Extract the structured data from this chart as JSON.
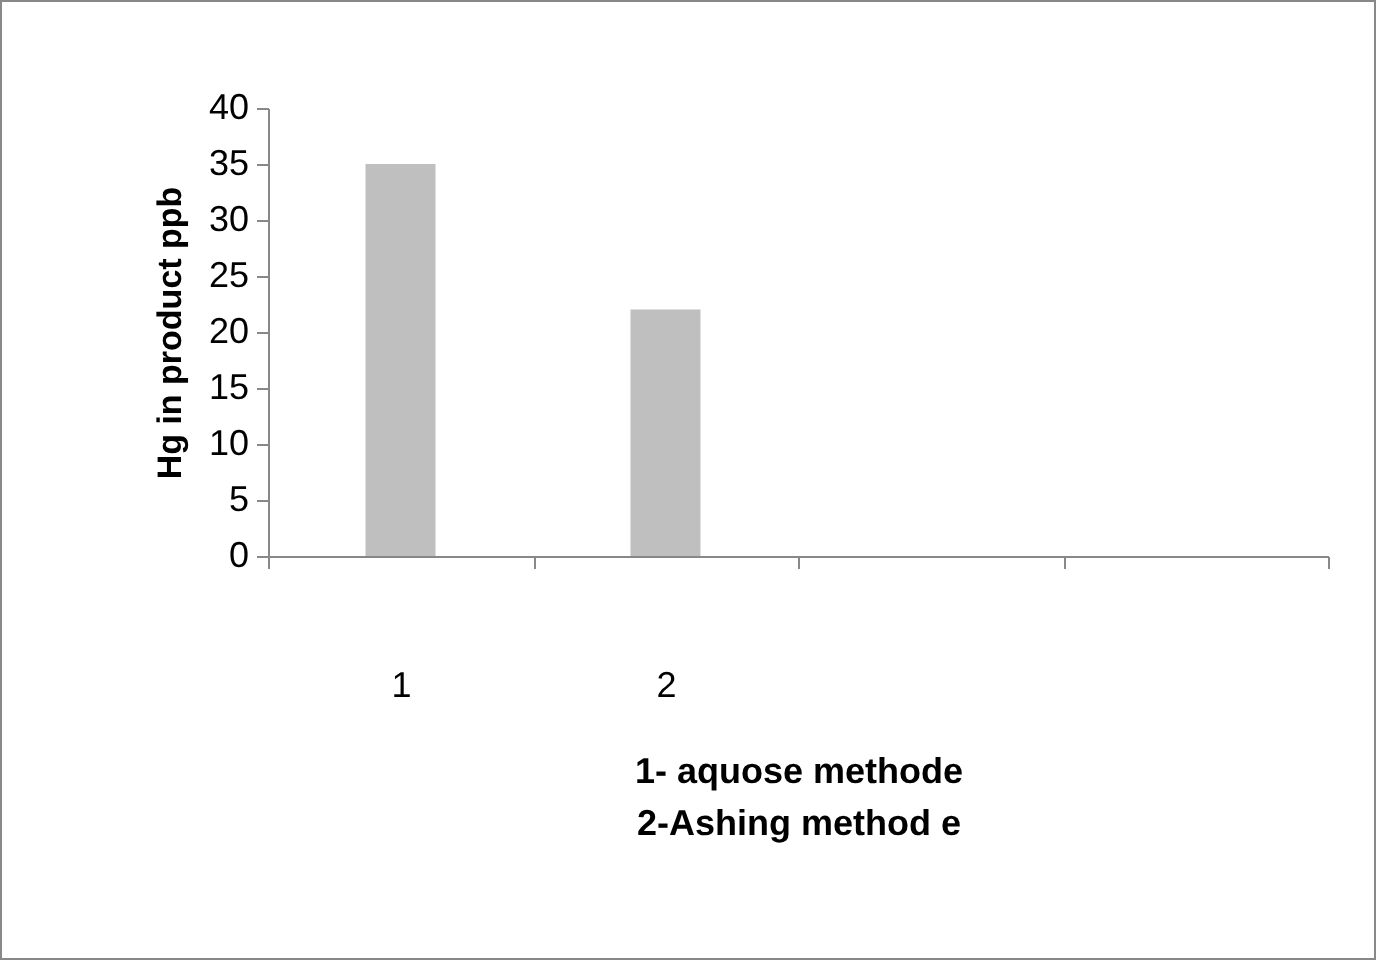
{
  "chart_data": {
    "type": "bar",
    "xlabel": "1- aquose methode\n2-Ashing method e",
    "ylabel": "Hg in product ppb",
    "categories": [
      "1",
      "2",
      null,
      null
    ],
    "values": [
      35,
      22,
      null,
      null
    ],
    "color": "#bfbfbf",
    "ylim": [
      0,
      40
    ],
    "yticks": [
      0,
      5,
      10,
      15,
      20,
      25,
      30,
      35,
      40
    ],
    "grid": false
  }
}
